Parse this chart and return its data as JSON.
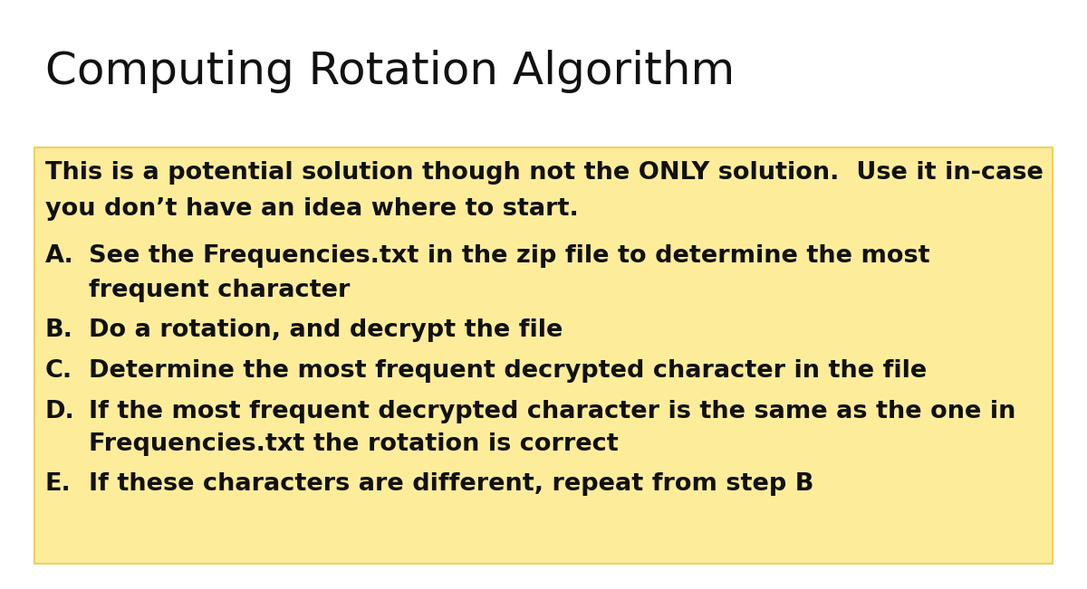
{
  "title": "Computing Rotation Algorithm",
  "title_fontsize": 36,
  "background_color": "#ffffff",
  "box_color": "#FDED9B",
  "box_edge_color": "#F0D060",
  "intro_line1": "This is a potential solution though not the ONLY solution.  Use it in-case",
  "intro_line2": "you don’t have an idea where to start.",
  "items": [
    {
      "label": "A.",
      "text": "See the Frequencies.txt in the zip file to determine the most",
      "text2": "frequent character",
      "has_second_line": true
    },
    {
      "label": "B.",
      "text": "Do a rotation, and decrypt the file",
      "has_second_line": false
    },
    {
      "label": "C.",
      "text": "Determine the most frequent decrypted character in the file",
      "has_second_line": false
    },
    {
      "label": "D.",
      "text": "If the most frequent decrypted character is the same as the one in",
      "text2": "Frequencies.txt the rotation is correct",
      "has_second_line": true
    },
    {
      "label": "E.",
      "text": "If these characters are different, repeat from step B",
      "has_second_line": false
    }
  ],
  "item_fontsize": 19.5,
  "intro_fontsize": 19.5,
  "font_family": "DejaVu Sans",
  "text_color": "#111111"
}
